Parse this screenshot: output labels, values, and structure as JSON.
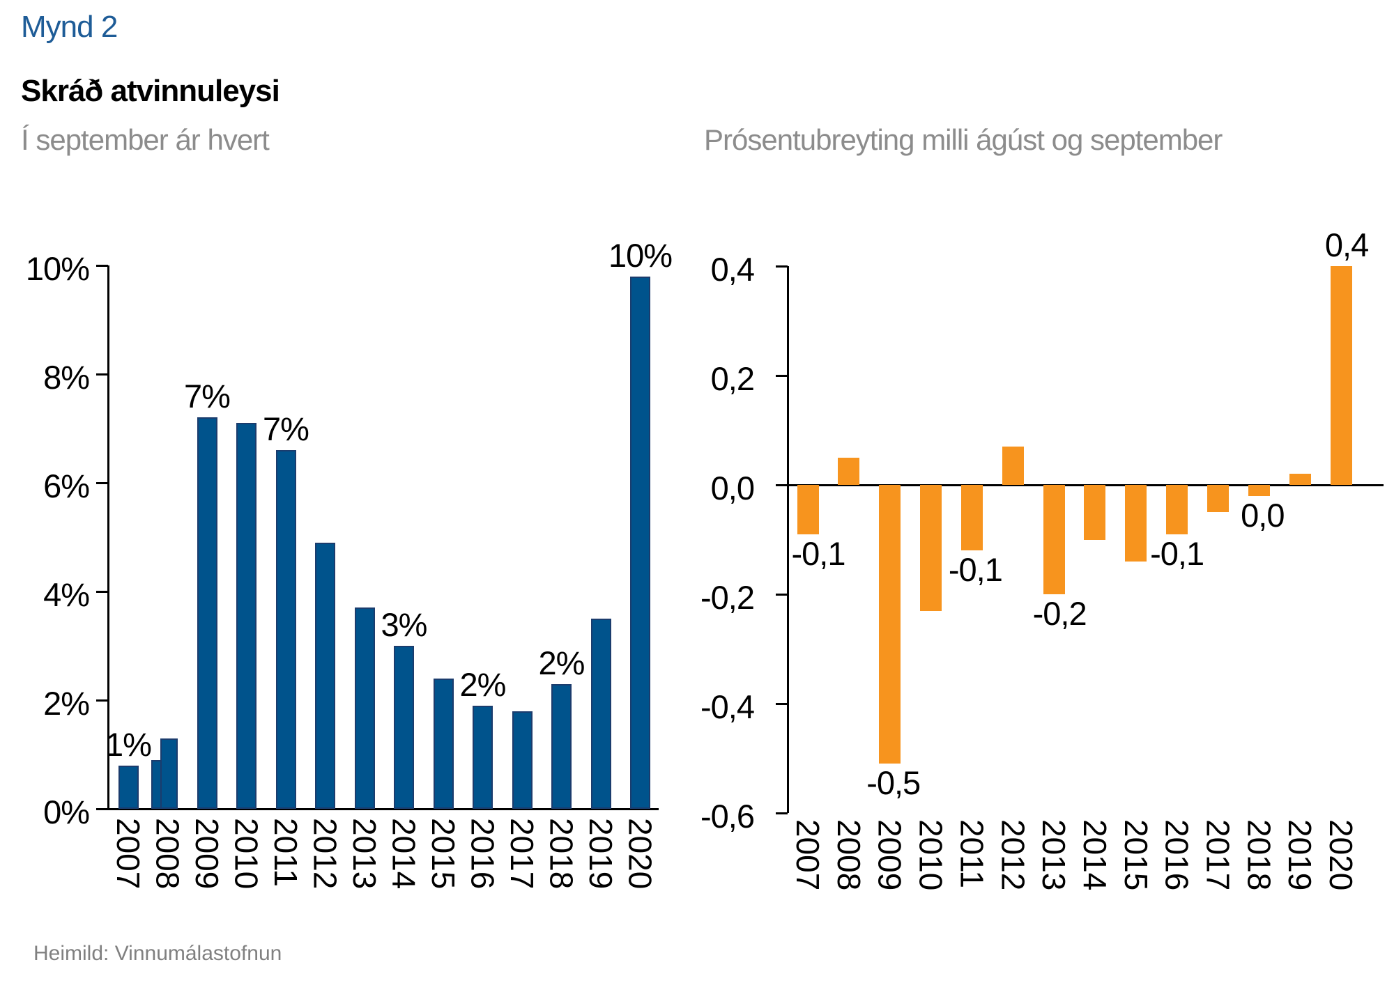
{
  "page": {
    "figure_label": "Mynd 2",
    "title": "Skráð atvinnuleysi",
    "subtitle_left": "Í september ár hvert",
    "subtitle_right": "Prósentubreyting milli ágúst og september",
    "source": "Heimild: Vinnumálastofnun"
  },
  "colors": {
    "figure_label_blue": "#1E5C97",
    "bar_blue": "#00538C",
    "bar_blue_border": "#1B3C6D",
    "bar_orange": "#F7941E",
    "subtitle_gray": "#8C8C8C",
    "source_gray": "#808080",
    "axis_black": "#000000"
  },
  "years": [
    "2007",
    "2008",
    "2009",
    "2010",
    "2011",
    "2012",
    "2013",
    "2014",
    "2015",
    "2016",
    "2017",
    "2018",
    "2019",
    "2020"
  ],
  "chart_data": [
    {
      "type": "bar",
      "title": "Skráð atvinnuleysi",
      "subtitle": "Í september ár hvert",
      "categories": [
        "2007",
        "2008",
        "2009",
        "2010",
        "2011",
        "2012",
        "2013",
        "2014",
        "2015",
        "2016",
        "2017",
        "2018",
        "2019",
        "2020"
      ],
      "values": [
        0.8,
        1.3,
        7.2,
        7.1,
        6.6,
        4.9,
        3.7,
        3.0,
        2.4,
        1.9,
        1.8,
        2.3,
        3.5,
        9.8
      ],
      "bar_labels": [
        "1%",
        null,
        "7%",
        null,
        "7%",
        null,
        null,
        "3%",
        null,
        "2%",
        null,
        "2%",
        null,
        "10%"
      ],
      "overlap_bar": {
        "year": "2008",
        "value": 0.9
      },
      "ytick_values": [
        0,
        2,
        4,
        6,
        8,
        10
      ],
      "ytick_labels": [
        "0%",
        "2%",
        "4%",
        "6%",
        "8%",
        "10%"
      ],
      "ylim": [
        0,
        10
      ],
      "unit": "%",
      "grid": false,
      "legend": false
    },
    {
      "type": "bar",
      "title": "Prósentubreyting milli ágúst og september",
      "categories": [
        "2007",
        "2008",
        "2009",
        "2010",
        "2011",
        "2012",
        "2013",
        "2014",
        "2015",
        "2016",
        "2017",
        "2018",
        "2019",
        "2020"
      ],
      "values": [
        -0.09,
        0.05,
        -0.51,
        -0.23,
        -0.12,
        0.07,
        -0.2,
        -0.1,
        -0.14,
        -0.09,
        -0.05,
        -0.02,
        0.02,
        0.4
      ],
      "bar_labels": [
        "-0,1",
        null,
        "-0,5",
        null,
        "-0,1",
        null,
        "-0,2",
        null,
        null,
        "-0,1",
        null,
        "0,0",
        null,
        "0,4"
      ],
      "ytick_values": [
        0.4,
        0.2,
        0.0,
        -0.2,
        -0.4,
        -0.6
      ],
      "ytick_labels": [
        "0,4",
        "0,2",
        "0,0",
        "-0,2",
        "-0,4",
        "-0,6"
      ],
      "ylim": [
        -0.6,
        0.4
      ],
      "grid": false,
      "legend": false
    }
  ]
}
